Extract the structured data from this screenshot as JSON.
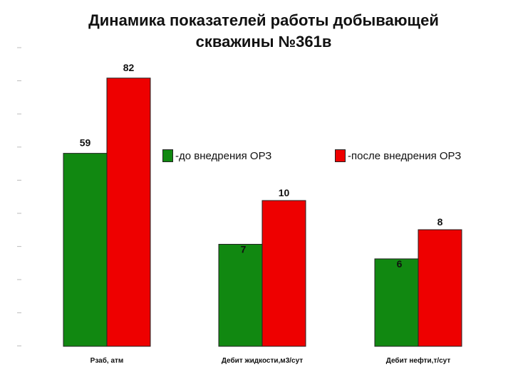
{
  "title": {
    "line1": "Динамика показателей работы добывающей",
    "line2": "скважины №361в"
  },
  "colors": {
    "before": "#118811",
    "after": "#ee0000",
    "bar_stroke": "#222222"
  },
  "chart_data": {
    "type": "bar",
    "title": "Динамика показателей работы добывающей скважины №361в",
    "categories": [
      "Рзаб, атм",
      "Дебит жидкости,м3/сут",
      "Дебит нефти,т/сут"
    ],
    "series": [
      {
        "name": "-до внедрения ОРЗ",
        "values": [
          59,
          7,
          6
        ]
      },
      {
        "name": "-после внедрения ОРЗ",
        "values": [
          82,
          10,
          8
        ]
      }
    ],
    "legend_position": "top-right",
    "grid": false
  }
}
